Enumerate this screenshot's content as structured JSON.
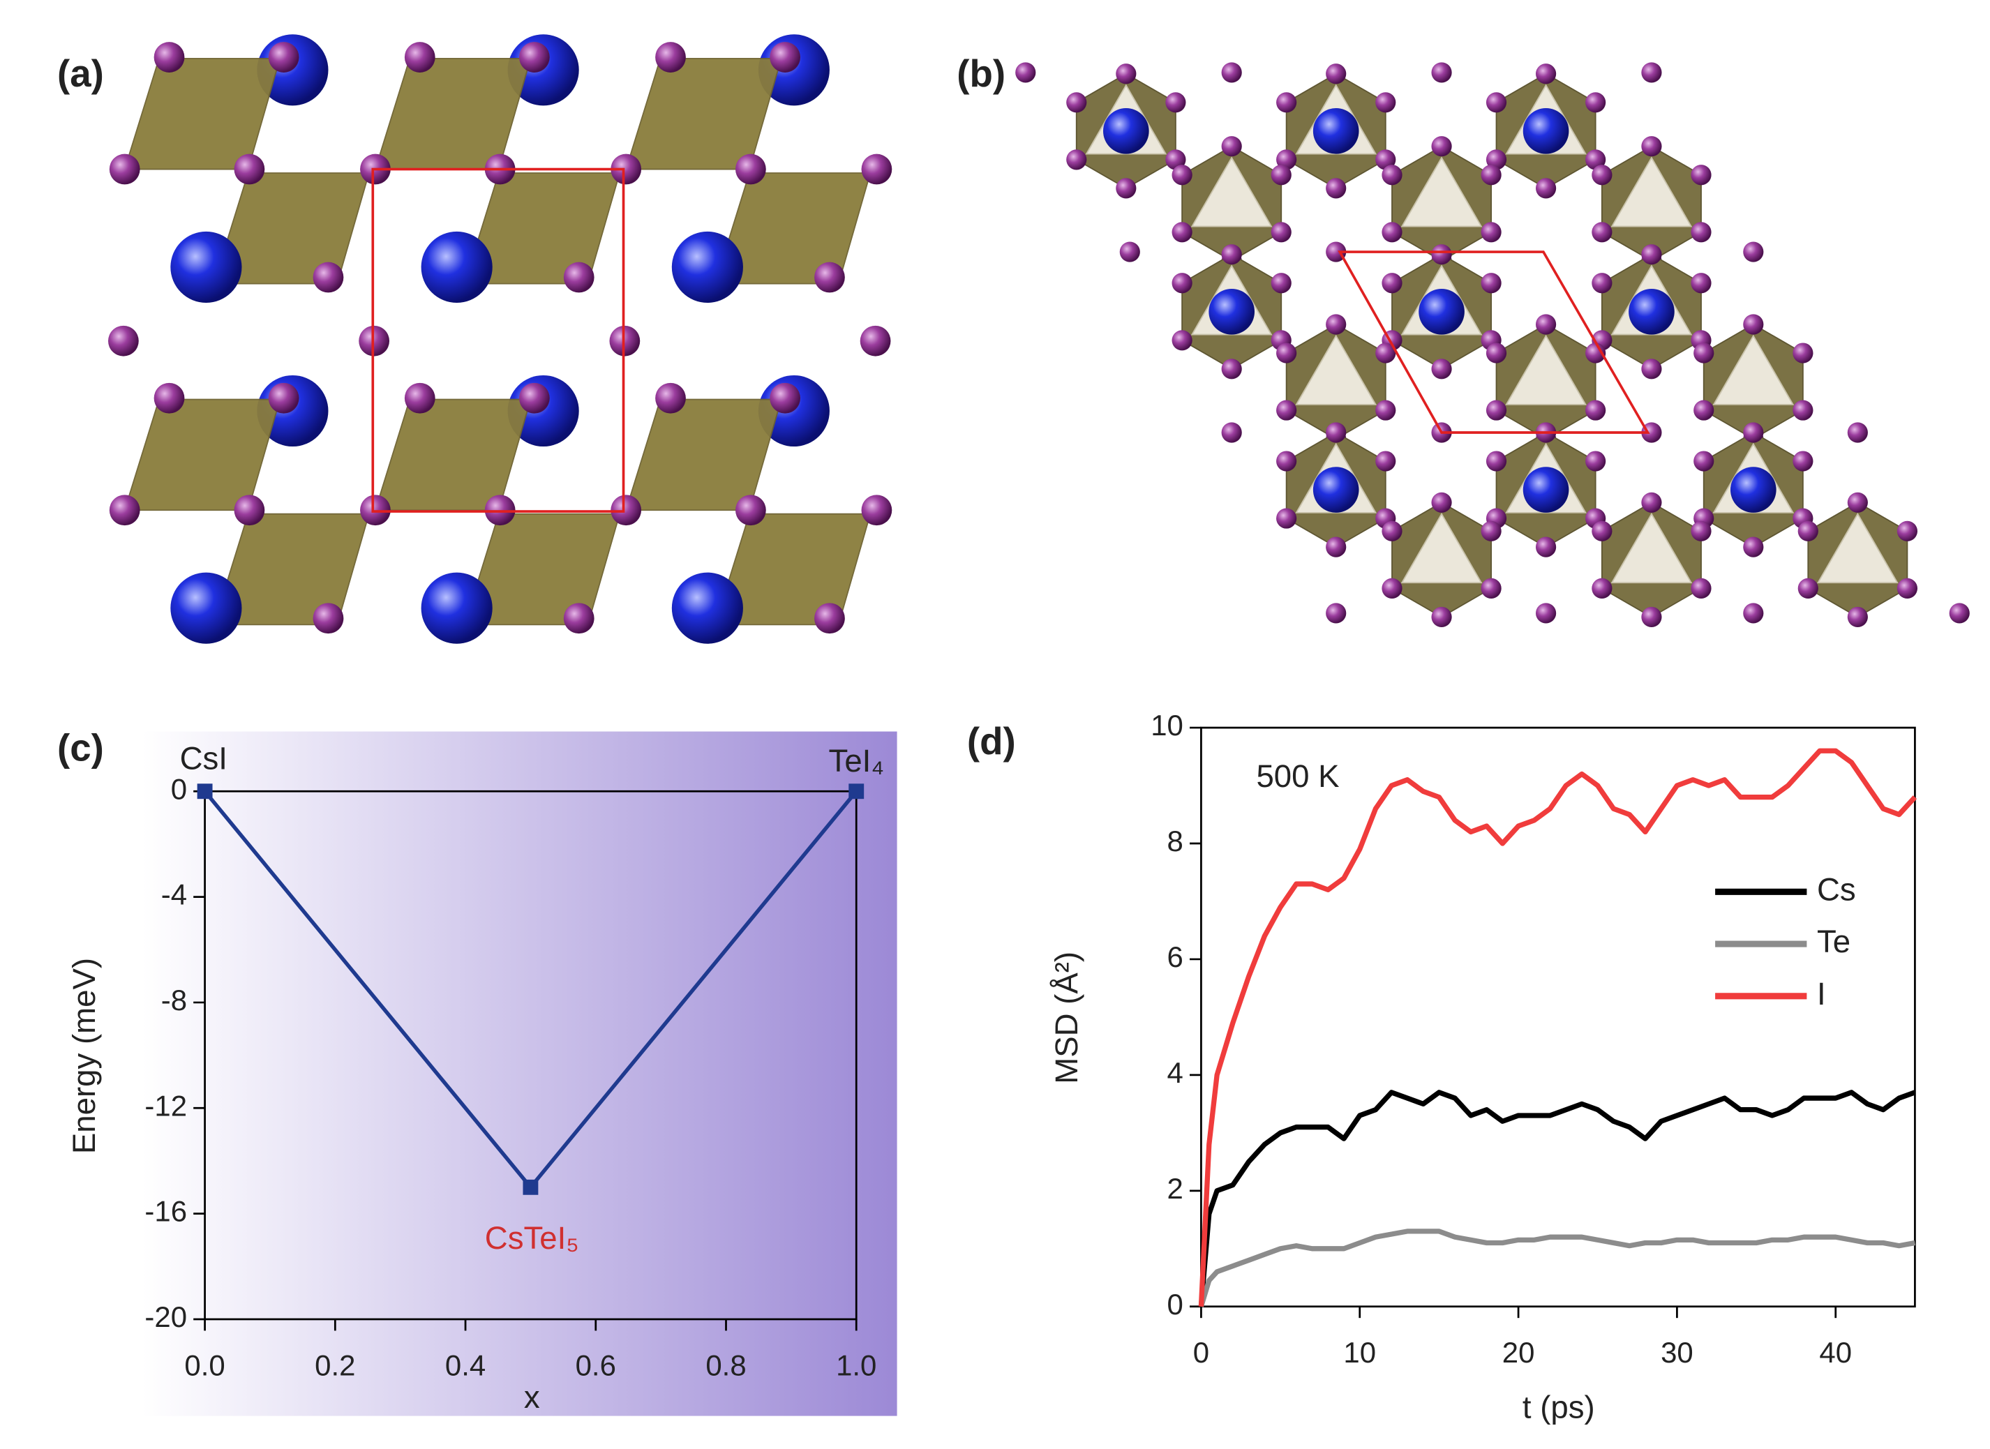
{
  "structures": [
    {
      "label": "(a)"
    },
    {
      "label": "(b)"
    }
  ],
  "chart_data": [
    {
      "type": "line",
      "panel_label": "(c)",
      "x": [
        0,
        0.5,
        1
      ],
      "values": [
        0,
        -15,
        0
      ],
      "color": "#1f3a8f",
      "marker": "square",
      "xlim": [
        0,
        1
      ],
      "ylim": [
        -20,
        0
      ],
      "xticks": [
        {
          "value": 0,
          "label": "0.0"
        },
        0.2,
        0.4,
        0.6,
        0.8,
        {
          "value": 1,
          "label": "1.0"
        }
      ],
      "yticks": [
        0,
        -4,
        -8,
        -12,
        -16,
        -20
      ],
      "xlabel": "x",
      "ylabel": "Energy (meV)",
      "background_gradient": [
        "#ffffff",
        "#9c89d6"
      ],
      "annotations": [
        {
          "text": "CsI"
        },
        {
          "text": "TeI₄"
        },
        {
          "text": "CsTeI₅",
          "color": "#d03030"
        }
      ]
    },
    {
      "type": "line",
      "panel_label": "(d)",
      "x": [
        0,
        0.5,
        1,
        2,
        3,
        4,
        5,
        6,
        7,
        8,
        9,
        10,
        11,
        12,
        13,
        14,
        15,
        16,
        17,
        18,
        19,
        20,
        21,
        22,
        23,
        24,
        25,
        26,
        27,
        28,
        29,
        30,
        31,
        32,
        33,
        34,
        35,
        36,
        37,
        38,
        39,
        40,
        41,
        42,
        43,
        44,
        45
      ],
      "series": [
        {
          "name": "Cs",
          "color": "#000000",
          "values": [
            0,
            1.6,
            2.0,
            2.1,
            2.5,
            2.8,
            3.0,
            3.1,
            3.1,
            3.1,
            2.9,
            3.3,
            3.4,
            3.7,
            3.6,
            3.5,
            3.7,
            3.6,
            3.3,
            3.4,
            3.2,
            3.3,
            3.3,
            3.3,
            3.4,
            3.5,
            3.4,
            3.2,
            3.1,
            2.9,
            3.2,
            3.3,
            3.4,
            3.5,
            3.6,
            3.4,
            3.4,
            3.3,
            3.4,
            3.6,
            3.6,
            3.6,
            3.7,
            3.5,
            3.4,
            3.6,
            3.7
          ]
        },
        {
          "name": "Te",
          "color": "#8c8c8c",
          "values": [
            0,
            0.45,
            0.6,
            0.7,
            0.8,
            0.9,
            1.0,
            1.05,
            1.0,
            1.0,
            1.0,
            1.1,
            1.2,
            1.25,
            1.3,
            1.3,
            1.3,
            1.2,
            1.15,
            1.1,
            1.1,
            1.15,
            1.15,
            1.2,
            1.2,
            1.2,
            1.15,
            1.1,
            1.05,
            1.1,
            1.1,
            1.15,
            1.15,
            1.1,
            1.1,
            1.1,
            1.1,
            1.15,
            1.15,
            1.2,
            1.2,
            1.2,
            1.15,
            1.1,
            1.1,
            1.05,
            1.1
          ]
        },
        {
          "name": "I",
          "color": "#f03c3c",
          "values": [
            0,
            2.8,
            4.0,
            4.9,
            5.7,
            6.4,
            6.9,
            7.3,
            7.3,
            7.2,
            7.4,
            7.9,
            8.6,
            9.0,
            9.1,
            8.9,
            8.8,
            8.4,
            8.2,
            8.3,
            8.0,
            8.3,
            8.4,
            8.6,
            9.0,
            9.2,
            9.0,
            8.6,
            8.5,
            8.2,
            8.6,
            9.0,
            9.1,
            9.0,
            9.1,
            8.8,
            8.8,
            8.8,
            9.0,
            9.3,
            9.6,
            9.6,
            9.4,
            9.0,
            8.6,
            8.5,
            8.8
          ]
        }
      ],
      "xlim": [
        0,
        45
      ],
      "ylim": [
        0,
        10
      ],
      "xticks": [
        0,
        10,
        20,
        30,
        40
      ],
      "yticks": [
        0,
        2,
        4,
        6,
        8,
        10
      ],
      "xlabel": "t (ps)",
      "ylabel": "MSD (Å²)",
      "legend": "right",
      "annotations": [
        {
          "text": "500 K"
        }
      ]
    }
  ]
}
